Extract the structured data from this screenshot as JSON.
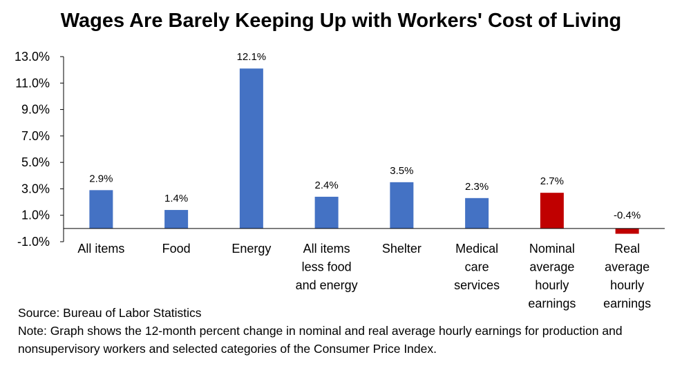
{
  "chart_data": {
    "type": "bar",
    "title": "Wages Are Barely Keeping Up with Workers' Cost of Living",
    "categories": [
      [
        "All items"
      ],
      [
        "Food"
      ],
      [
        "Energy"
      ],
      [
        "All items",
        "less food",
        "and energy"
      ],
      [
        "Shelter"
      ],
      [
        "Medical",
        "care",
        "services"
      ],
      [
        "Nominal",
        "average",
        "hourly",
        "earnings"
      ],
      [
        "Real",
        "average",
        "hourly",
        "earnings"
      ]
    ],
    "values": [
      2.9,
      1.4,
      12.1,
      2.4,
      3.5,
      2.3,
      2.7,
      -0.4
    ],
    "data_labels": [
      "2.9%",
      "1.4%",
      "12.1%",
      "2.4%",
      "3.5%",
      "2.3%",
      "2.7%",
      "-0.4%"
    ],
    "bar_colors": [
      "#4472C4",
      "#4472C4",
      "#4472C4",
      "#4472C4",
      "#4472C4",
      "#4472C4",
      "#C00000",
      "#C00000"
    ],
    "yticks": [
      "-1.0%",
      "1.0%",
      "3.0%",
      "5.0%",
      "7.0%",
      "9.0%",
      "11.0%",
      "13.0%"
    ],
    "ytick_values": [
      -1,
      1,
      3,
      5,
      7,
      9,
      11,
      13
    ],
    "ylim": [
      -1,
      13
    ],
    "grid": false,
    "legend": "none",
    "xlabel": "",
    "ylabel": ""
  },
  "notes": {
    "source": "Source: Bureau of Labor Statistics",
    "note": "Note: Graph shows the 12-month percent change in nominal and real average hourly earnings for production and nonsupervisory workers and selected categories of the Consumer Price Index."
  }
}
